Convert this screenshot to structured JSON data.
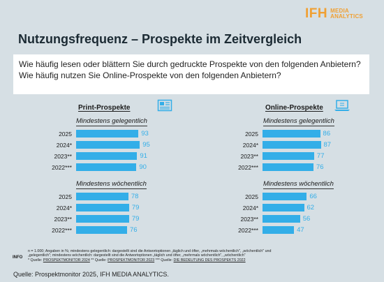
{
  "logo": {
    "brand": "IFH",
    "line1": "MEDIA",
    "line2": "ANALYTICS"
  },
  "title": "Nutzungsfrequenz – Prospekte im Zeitvergleich",
  "question": "Wie häufig lesen oder blättern Sie durch gedruckte Prospekte von den folgenden Anbietern? Wie häufig nutzen Sie Online-Prospekte von den folgenden Anbietern?",
  "footnote": {
    "line1": "n = 1.000; Angaben in %; mindestens gelegentlich: dargestellt sind die Antwortoptionen „täglich und öfter, „mehrmals wöchentlich\", „wöchentlich\" und",
    "line2": "„gelegentlich\"; mindestens wöchentlich: dargestellt sind die Antwortoptionen „täglich und öfter, „mehrmals wöchentlich\", „wöchentlich\"",
    "line3_pre": "* Quelle: ",
    "src1": "PROSPEKTMONITOR 2024",
    "mid1": " ** Quelle: ",
    "src2": "PROSPEKTMONITOR 2023",
    "mid2": " *** Quelle: ",
    "src3": "DIE BEDEUTUNG DES PROSPEKTS 2022",
    "info": "INFO"
  },
  "source": "Quelle: Prospektmonitor 2025, IFH MEDIA ANALYTICS.",
  "colors": {
    "bar": "#33aee8",
    "accent": "#f0a033",
    "background": "#d6dfe4"
  },
  "chart_data": [
    {
      "type": "bar",
      "title": "Print-Prospekte",
      "icon": "newspaper-icon",
      "xlim": [
        0,
        100
      ],
      "groups": [
        {
          "name": "Mindestens gelegentlich",
          "categories": [
            "2025",
            "2024*",
            "2023**",
            "2022***"
          ],
          "values": [
            93,
            95,
            91,
            90
          ]
        },
        {
          "name": "Mindestens wöchentlich",
          "categories": [
            "2025",
            "2024*",
            "2023**",
            "2022***"
          ],
          "values": [
            78,
            79,
            79,
            76
          ]
        }
      ]
    },
    {
      "type": "bar",
      "title": "Online-Prospekte",
      "icon": "laptop-icon",
      "xlim": [
        0,
        100
      ],
      "groups": [
        {
          "name": "Mindestens gelegentlich",
          "categories": [
            "2025",
            "2024*",
            "2023**",
            "2022***"
          ],
          "values": [
            86,
            87,
            77,
            76
          ]
        },
        {
          "name": "Mindestens wöchentlich",
          "categories": [
            "2025",
            "2024*",
            "2023**",
            "2022***"
          ],
          "values": [
            66,
            62,
            56,
            47
          ]
        }
      ]
    }
  ]
}
